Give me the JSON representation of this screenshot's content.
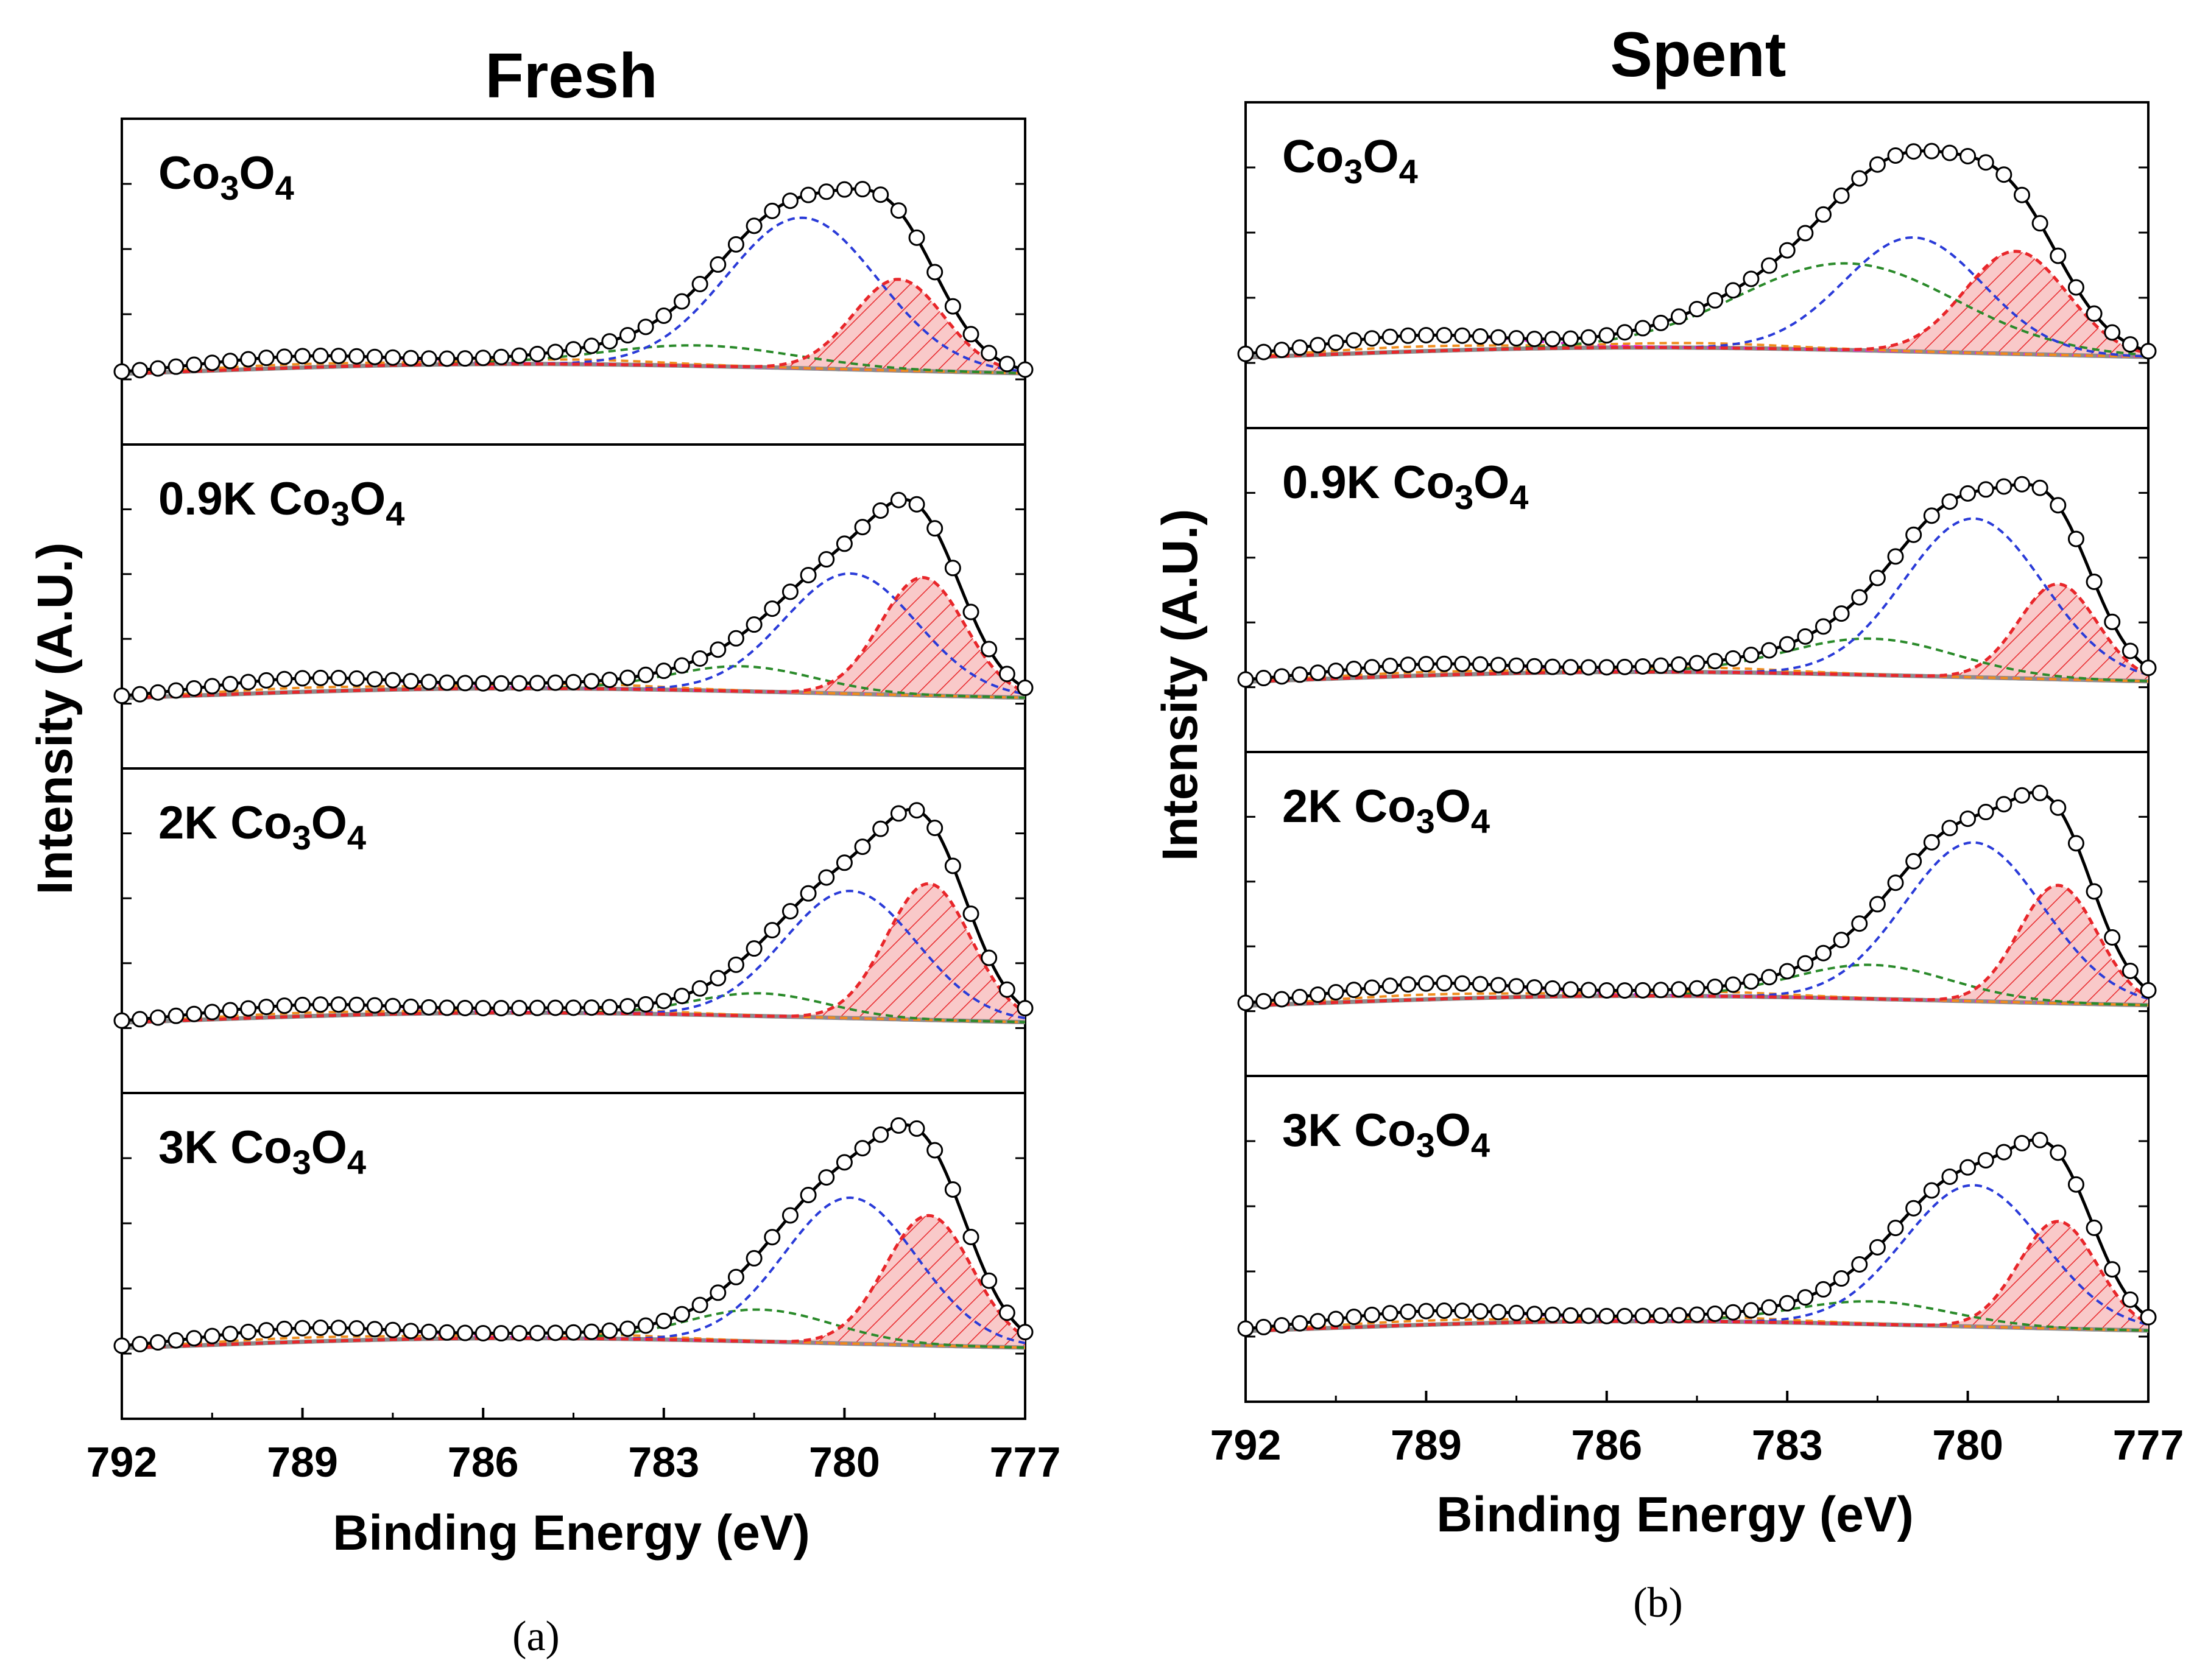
{
  "colors": {
    "envelope": "#000000",
    "baseline": "#8c8c8c",
    "co3_peak": "#e8262a",
    "co2_peak": "#2a3bd8",
    "satellite1": "#2a8a2a",
    "satellite2": "#f08c1c",
    "satellite3": "#e020e0",
    "hatch_fill": "#f9c9c9"
  },
  "legend": [],
  "chart_data": [
    {
      "type": "line",
      "title": "Fresh",
      "caption": "(a)",
      "xlabel": "Binding Energy (eV)",
      "ylabel": "Intensity (A.U.)",
      "xlim": [
        792,
        777
      ],
      "xticks": [
        792,
        789,
        786,
        783,
        780,
        777
      ],
      "series_note": "Co 2p3/2 XPS fits: data (open circles), envelope (black), Co3+ (red dashed, hatched), Co2+ (blue dashed), satellites (green, orange, magenta dashed), baseline (grey)",
      "panels": [
        {
          "label_main": "Co",
          "sub1": "3",
          "mid": "O",
          "sub2": "4",
          "prefix": "",
          "co3_center": 779.1,
          "co3_height": 0.4,
          "co3_width": 0.75,
          "co2_center": 780.7,
          "co2_height": 0.66,
          "co2_width": 1.25,
          "sat_center": 782.4,
          "sat_height": 0.09,
          "sat_width": 1.6,
          "far_center": 789.1,
          "far_height": 0.05,
          "shoulder": 0.0,
          "peak_top": 1.0,
          "baseline_start": 0.02
        },
        {
          "label_main": "Co",
          "sub1": "3",
          "mid": "O",
          "sub2": "4",
          "prefix": "0.9K ",
          "co3_center": 778.7,
          "co3_height": 0.52,
          "co3_width": 0.7,
          "co2_center": 779.9,
          "co2_height": 0.53,
          "co2_width": 1.1,
          "sat_center": 781.7,
          "sat_height": 0.11,
          "sat_width": 1.2,
          "far_center": 789.0,
          "far_height": 0.06,
          "shoulder": 0.0,
          "peak_top": 0.93,
          "baseline_start": 0.02
        },
        {
          "label_main": "Co",
          "sub1": "3",
          "mid": "O",
          "sub2": "4",
          "prefix": "2K ",
          "co3_center": 778.6,
          "co3_height": 0.6,
          "co3_width": 0.7,
          "co2_center": 779.9,
          "co2_height": 0.56,
          "co2_width": 1.1,
          "sat_center": 781.4,
          "sat_height": 0.1,
          "sat_width": 1.1,
          "far_center": 789.0,
          "far_height": 0.05,
          "shoulder": 0.0,
          "peak_top": 0.96,
          "baseline_start": 0.02
        },
        {
          "label_main": "Co",
          "sub1": "3",
          "mid": "O",
          "sub2": "4",
          "prefix": "3K ",
          "co3_center": 778.6,
          "co3_height": 0.57,
          "co3_width": 0.72,
          "co2_center": 779.9,
          "co2_height": 0.64,
          "co2_width": 1.1,
          "sat_center": 781.4,
          "sat_height": 0.14,
          "sat_width": 1.2,
          "far_center": 789.0,
          "far_height": 0.06,
          "shoulder": 0.0,
          "peak_top": 0.97,
          "baseline_start": 0.02
        }
      ]
    },
    {
      "type": "line",
      "title": "Spent",
      "caption": "(b)",
      "xlabel": "Binding Energy (eV)",
      "ylabel": "Intensity (A.U.)",
      "xlim": [
        792,
        777
      ],
      "xticks": [
        792,
        789,
        786,
        783,
        780,
        777
      ],
      "series_note": "Co 2p3/2 XPS fits: data (open circles), envelope (black), Co3+ (red dashed, hatched), Co2+ (blue dashed), satellites (green, orange, magenta dashed), baseline (grey)",
      "panels": [
        {
          "label_main": "Co",
          "sub1": "3",
          "mid": "O",
          "sub2": "4",
          "prefix": "",
          "co3_center": 779.2,
          "co3_height": 0.45,
          "co3_width": 0.85,
          "co2_center": 780.9,
          "co2_height": 0.5,
          "co2_width": 1.15,
          "sat_center": 782.0,
          "sat_height": 0.38,
          "sat_width": 1.8,
          "far_center": 789.2,
          "far_height": 0.07,
          "shoulder": 0.0,
          "peak_top": 0.99,
          "baseline_start": 0.02
        },
        {
          "label_main": "Co",
          "sub1": "3",
          "mid": "O",
          "sub2": "4",
          "prefix": "0.9K ",
          "co3_center": 778.5,
          "co3_height": 0.42,
          "co3_width": 0.65,
          "co2_center": 779.9,
          "co2_height": 0.7,
          "co2_width": 1.15,
          "sat_center": 781.6,
          "sat_height": 0.16,
          "sat_width": 1.4,
          "far_center": 789.1,
          "far_height": 0.05,
          "shoulder": 0.0,
          "peak_top": 1.0,
          "baseline_start": 0.02
        },
        {
          "label_main": "Co",
          "sub1": "3",
          "mid": "O",
          "sub2": "4",
          "prefix": "2K ",
          "co3_center": 778.5,
          "co3_height": 0.52,
          "co3_width": 0.65,
          "co2_center": 779.9,
          "co2_height": 0.7,
          "co2_width": 1.15,
          "sat_center": 781.6,
          "sat_height": 0.15,
          "sat_width": 1.3,
          "far_center": 789.0,
          "far_height": 0.07,
          "shoulder": 0.0,
          "peak_top": 0.98,
          "baseline_start": 0.02
        },
        {
          "label_main": "Co",
          "sub1": "3",
          "mid": "O",
          "sub2": "4",
          "prefix": "3K ",
          "co3_center": 778.5,
          "co3_height": 0.47,
          "co3_width": 0.65,
          "co2_center": 779.9,
          "co2_height": 0.62,
          "co2_width": 1.15,
          "sat_center": 781.6,
          "sat_height": 0.1,
          "sat_width": 1.3,
          "far_center": 789.0,
          "far_height": 0.06,
          "shoulder": 0.0,
          "peak_top": 1.0,
          "baseline_start": 0.02
        }
      ]
    }
  ]
}
